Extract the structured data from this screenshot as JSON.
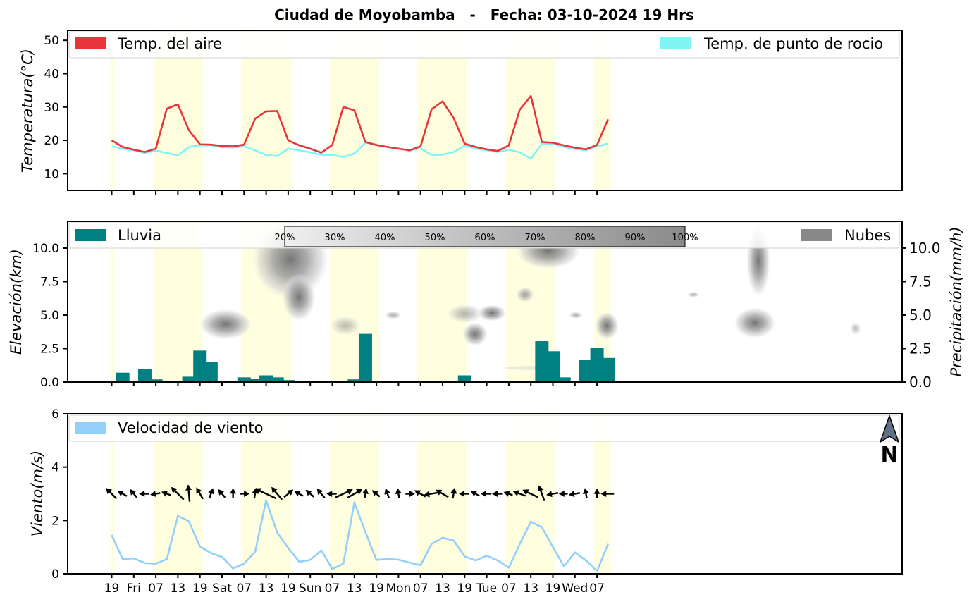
{
  "title": "Ciudad de Moyobamba   -   Fecha: 03-10-2024 19 Hrs",
  "x_tick_labels": [
    "19",
    "Fri",
    "07",
    "13",
    "19",
    "Sat",
    "07",
    "13",
    "19",
    "Sun",
    "07",
    "13",
    "19",
    "Mon",
    "07",
    "13",
    "19",
    "Tue",
    "07",
    "13",
    "19",
    "Wed",
    "07"
  ],
  "colors": {
    "temp_air": "#e8343a",
    "dew_point": "#7ff5f5",
    "rain": "#008080",
    "clouds": "#888888",
    "wind": "#92d0fa",
    "daylight": "#ffffe0"
  },
  "chart_data": [
    {
      "type": "line",
      "panel": "temperature",
      "ylabel": "Temperatura(°C)",
      "ylim": [
        5,
        53
      ],
      "yticks": [
        10,
        20,
        30,
        40,
        50
      ],
      "grid": false,
      "legend": "top",
      "x_step_hours": 3,
      "series": [
        {
          "name": "Temp. del aire",
          "values": [
            20.0,
            18.0,
            17.2,
            16.5,
            17.5,
            29.5,
            30.8,
            23.0,
            18.8,
            18.7,
            18.3,
            18.2,
            18.7,
            26.5,
            28.7,
            28.8,
            20.0,
            18.5,
            17.5,
            16.3,
            18.6,
            30.0,
            29.0,
            19.5,
            18.6,
            18.0,
            17.5,
            17.0,
            18.2,
            29.3,
            31.7,
            26.7,
            19.0,
            18.0,
            17.3,
            16.8,
            18.5,
            29.2,
            33.3,
            19.5,
            19.3,
            18.5,
            17.8,
            17.3,
            18.6,
            26.3
          ]
        },
        {
          "name": "Temp. de punto de rocio",
          "values": [
            18.2,
            17.5,
            17.0,
            16.2,
            16.9,
            16.2,
            15.5,
            18.0,
            18.5,
            18.5,
            18.0,
            17.8,
            18.2,
            17.0,
            15.6,
            15.3,
            17.5,
            17.0,
            16.4,
            15.7,
            15.6,
            15.0,
            16.0,
            19.3,
            18.7,
            18.0,
            17.6,
            16.9,
            17.6,
            15.6,
            15.7,
            16.5,
            18.4,
            17.5,
            17.0,
            16.5,
            17.2,
            16.4,
            14.5,
            19.0,
            19.0,
            18.0,
            17.4,
            17.0,
            18.2,
            19.0
          ]
        }
      ]
    },
    {
      "type": "bar",
      "panel": "precipitation_clouds",
      "ylabel": "Elevación(km)",
      "ylabel_right": "Precipitación(mm/h)",
      "ylim": [
        0,
        12
      ],
      "yticks": [
        0.0,
        2.5,
        5.0,
        7.5,
        10.0
      ],
      "yticks_right": [
        0.0,
        2.5,
        5.0,
        7.5,
        10.0
      ],
      "legend": "top",
      "series": [
        {
          "name": "Lluvia",
          "values": [
            0,
            0.7,
            0.05,
            0.95,
            0.2,
            0.1,
            0.1,
            0.4,
            2.35,
            1.5,
            0,
            0.05,
            0.35,
            0.25,
            0.5,
            0.35,
            0.15,
            0.1,
            0,
            0,
            0,
            0,
            0.2,
            3.6,
            0,
            0,
            0,
            0,
            0,
            0,
            0,
            0,
            0.5,
            0,
            0,
            0,
            0,
            0,
            0,
            3.05,
            2.3,
            0.35,
            0.1,
            1.65,
            2.55,
            1.8
          ]
        },
        {
          "name": "Nubes"
        }
      ],
      "colorbar_labels": [
        "20%",
        "30%",
        "40%",
        "50%",
        "60%",
        "70%",
        "80%",
        "90%",
        "100%"
      ]
    },
    {
      "type": "line",
      "panel": "wind",
      "ylabel": "Viento(m/s)",
      "ylim": [
        0,
        6
      ],
      "yticks": [
        0,
        2,
        4,
        6
      ],
      "legend": "top-left",
      "series": [
        {
          "name": "Velocidad de viento",
          "values": [
            1.45,
            0.55,
            0.58,
            0.4,
            0.38,
            0.55,
            2.17,
            1.97,
            1.02,
            0.78,
            0.63,
            0.2,
            0.38,
            0.82,
            2.75,
            1.55,
            0.97,
            0.45,
            0.52,
            0.88,
            0.18,
            0.38,
            2.68,
            1.57,
            0.52,
            0.55,
            0.53,
            0.42,
            0.32,
            1.12,
            1.35,
            1.25,
            0.65,
            0.5,
            0.68,
            0.5,
            0.23,
            1.12,
            1.95,
            1.75,
            1.0,
            0.28,
            0.8,
            0.5,
            0.1,
            1.12
          ]
        }
      ],
      "compass_label": "N"
    }
  ]
}
